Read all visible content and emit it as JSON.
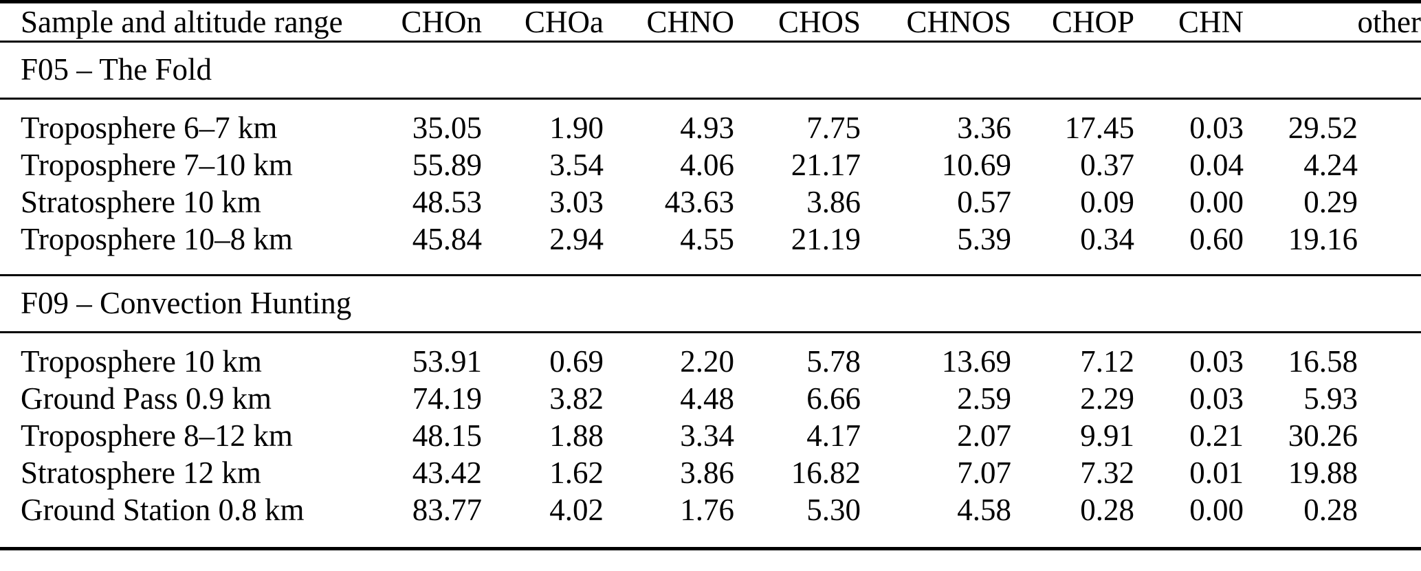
{
  "colors": {
    "text": "#000000",
    "background": "#ffffff",
    "rule": "#000000"
  },
  "table": {
    "columns": [
      "Sample and altitude range",
      "CHOn",
      "CHOa",
      "CHNO",
      "CHOS",
      "CHNOS",
      "CHOP",
      "CHN",
      "other"
    ],
    "sections": [
      {
        "heading": "F05 – The Fold",
        "rows": [
          {
            "label": "Troposphere 6–7 km",
            "values": [
              "35.05",
              "1.90",
              "4.93",
              "7.75",
              "3.36",
              "17.45",
              "0.03",
              "29.52"
            ]
          },
          {
            "label": "Troposphere 7–10 km",
            "values": [
              "55.89",
              "3.54",
              "4.06",
              "21.17",
              "10.69",
              "0.37",
              "0.04",
              "4.24"
            ]
          },
          {
            "label": "Stratosphere 10 km",
            "values": [
              "48.53",
              "3.03",
              "43.63",
              "3.86",
              "0.57",
              "0.09",
              "0.00",
              "0.29"
            ]
          },
          {
            "label": "Troposphere 10–8 km",
            "values": [
              "45.84",
              "2.94",
              "4.55",
              "21.19",
              "5.39",
              "0.34",
              "0.60",
              "19.16"
            ]
          }
        ]
      },
      {
        "heading": "F09 – Convection Hunting",
        "rows": [
          {
            "label": "Troposphere 10 km",
            "values": [
              "53.91",
              "0.69",
              "2.20",
              "5.78",
              "13.69",
              "7.12",
              "0.03",
              "16.58"
            ]
          },
          {
            "label": "Ground Pass 0.9 km",
            "values": [
              "74.19",
              "3.82",
              "4.48",
              "6.66",
              "2.59",
              "2.29",
              "0.03",
              "5.93"
            ]
          },
          {
            "label": "Troposphere 8–12 km",
            "values": [
              "48.15",
              "1.88",
              "3.34",
              "4.17",
              "2.07",
              "9.91",
              "0.21",
              "30.26"
            ]
          },
          {
            "label": "Stratosphere 12 km",
            "values": [
              "43.42",
              "1.62",
              "3.86",
              "16.82",
              "7.07",
              "7.32",
              "0.01",
              "19.88"
            ]
          },
          {
            "label": "Ground Station 0.8 km",
            "values": [
              "83.77",
              "4.02",
              "1.76",
              "5.30",
              "4.58",
              "0.28",
              "0.00",
              "0.28"
            ]
          }
        ]
      }
    ]
  }
}
